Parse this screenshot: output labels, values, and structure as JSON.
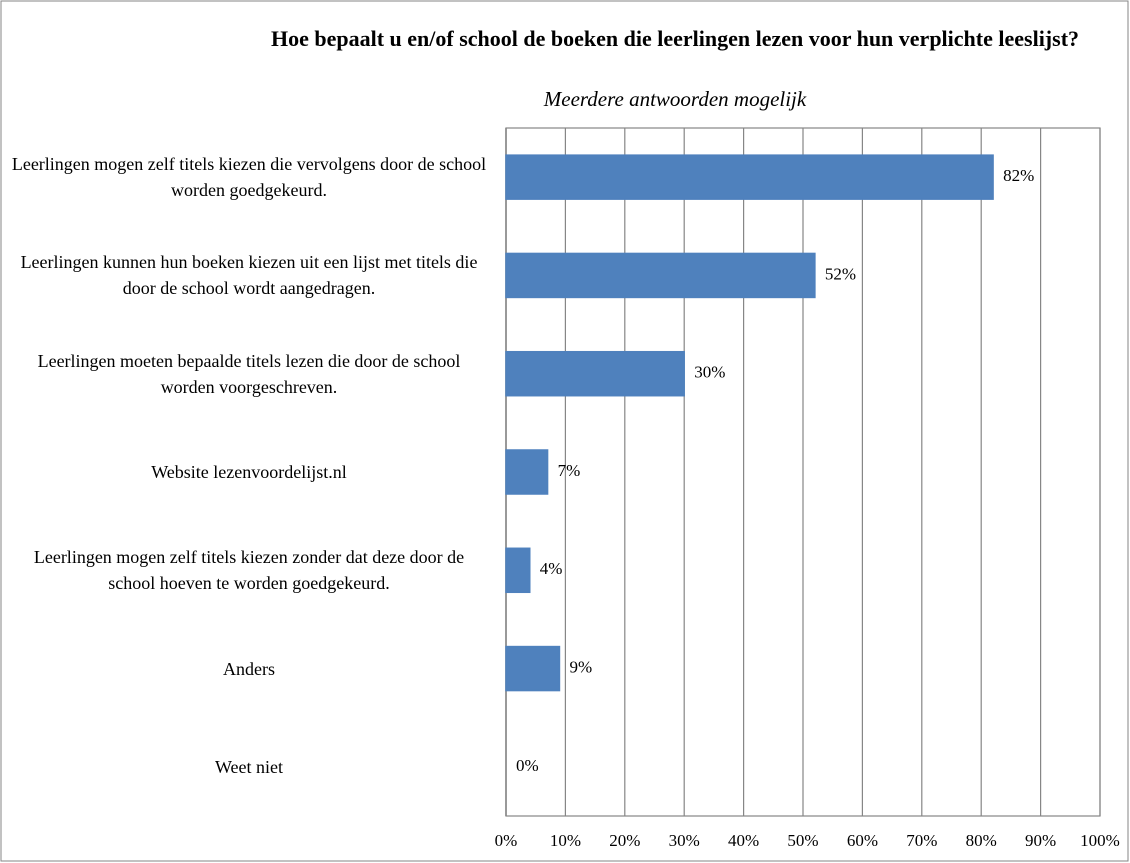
{
  "chart_data": {
    "type": "bar",
    "orientation": "horizontal",
    "title": "Hoe bepaalt u en/of school de boeken die leerlingen lezen voor hun verplichte leeslijst?",
    "subtitle": "Meerdere antwoorden mogelijk",
    "categories": [
      "Leerlingen mogen zelf titels kiezen die vervolgens door de school worden goedgekeurd.",
      "Leerlingen kunnen hun boeken kiezen uit een lijst met titels die door de school wordt aangedragen.",
      "Leerlingen moeten bepaalde titels lezen die door de school worden voorgeschreven.",
      "Website lezenvoordelijst.nl",
      "Leerlingen mogen zelf titels kiezen zonder dat deze door de school hoeven te worden goedgekeurd.",
      "Anders",
      "Weet niet"
    ],
    "values": [
      82,
      52,
      30,
      7,
      4,
      9,
      0
    ],
    "value_labels": [
      "82%",
      "52%",
      "30%",
      "7%",
      "4%",
      "9%",
      "0%"
    ],
    "color": "#4f81bd",
    "xlim": [
      0,
      100
    ],
    "xticks": [
      {
        "value": 0,
        "label": "0%"
      },
      {
        "value": 10,
        "label": "10%"
      },
      {
        "value": 20,
        "label": "20%"
      },
      {
        "value": 30,
        "label": "30%"
      },
      {
        "value": 40,
        "label": "40%"
      },
      {
        "value": 50,
        "label": "50%"
      },
      {
        "value": 60,
        "label": "60%"
      },
      {
        "value": 70,
        "label": "70%"
      },
      {
        "value": 80,
        "label": "80%"
      },
      {
        "value": 90,
        "label": "90%"
      },
      {
        "value": 100,
        "label": "100%"
      }
    ],
    "grid": true
  }
}
